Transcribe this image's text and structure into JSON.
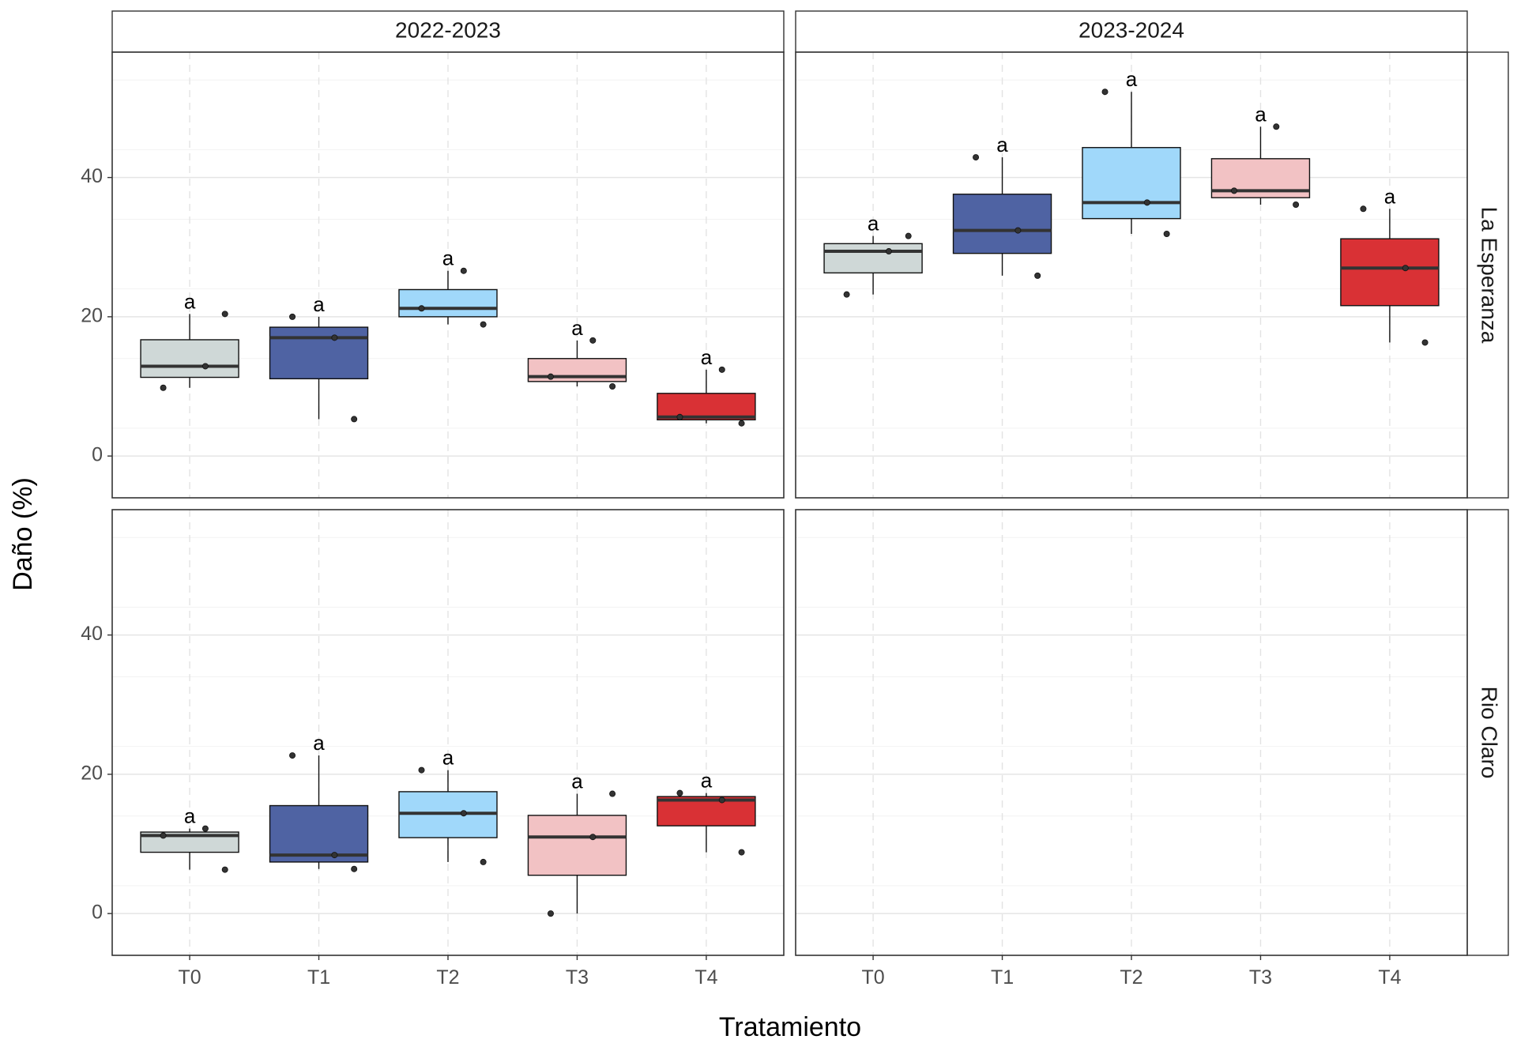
{
  "chart_data": {
    "type": "boxplot",
    "xlabel": "Tratamiento",
    "ylabel": "Daño (%)",
    "categories": [
      "T0",
      "T1",
      "T2",
      "T3",
      "T4"
    ],
    "yticks": [
      0,
      20,
      40
    ],
    "ylim": [
      -6,
      58
    ],
    "grid": true,
    "legend": "none",
    "colors": {
      "T0": "#cfd8d7",
      "T1": "#4f63a3",
      "T2": "#a0d8fa",
      "T3": "#f2c2c4",
      "T4": "#d93135"
    },
    "facets": {
      "columns": [
        "2022-2023",
        "2023-2024"
      ],
      "rows": [
        "La Esperanza",
        "Rio Claro"
      ]
    },
    "panels": [
      {
        "column": "2022-2023",
        "row": "La Esperanza",
        "groups": [
          {
            "category": "T0",
            "q1": 11.3,
            "median": 12.9,
            "q3": 16.7,
            "whisker_low": 9.8,
            "whisker_high": 20.4,
            "points": [
              9.8,
              12.9,
              20.4
            ],
            "label": "a"
          },
          {
            "category": "T1",
            "q1": 11.1,
            "median": 17.0,
            "q3": 18.5,
            "whisker_low": 5.3,
            "whisker_high": 20.0,
            "points": [
              20.0,
              17.0,
              5.3
            ],
            "label": "a"
          },
          {
            "category": "T2",
            "q1": 20.0,
            "median": 21.2,
            "q3": 23.9,
            "whisker_low": 18.9,
            "whisker_high": 26.6,
            "points": [
              21.2,
              26.6,
              18.9
            ],
            "label": "a"
          },
          {
            "category": "T3",
            "q1": 10.7,
            "median": 11.4,
            "q3": 14.0,
            "whisker_low": 10.0,
            "whisker_high": 16.6,
            "points": [
              11.4,
              16.6,
              10.0
            ],
            "label": "a"
          },
          {
            "category": "T4",
            "q1": 5.2,
            "median": 5.6,
            "q3": 9.0,
            "whisker_low": 4.7,
            "whisker_high": 12.4,
            "points": [
              5.6,
              12.4,
              4.7
            ],
            "label": "a"
          }
        ]
      },
      {
        "column": "2023-2024",
        "row": "La Esperanza",
        "groups": [
          {
            "category": "T0",
            "q1": 26.3,
            "median": 29.4,
            "q3": 30.5,
            "whisker_low": 23.2,
            "whisker_high": 31.6,
            "points": [
              23.2,
              29.4,
              31.6
            ],
            "label": "a"
          },
          {
            "category": "T1",
            "q1": 29.1,
            "median": 32.4,
            "q3": 37.6,
            "whisker_low": 25.9,
            "whisker_high": 42.9,
            "points": [
              42.9,
              32.4,
              25.9
            ],
            "label": "a"
          },
          {
            "category": "T2",
            "q1": 34.1,
            "median": 36.4,
            "q3": 44.3,
            "whisker_low": 31.9,
            "whisker_high": 52.3,
            "points": [
              52.3,
              36.4,
              31.9
            ],
            "label": "a"
          },
          {
            "category": "T3",
            "q1": 37.1,
            "median": 38.1,
            "q3": 42.7,
            "whisker_low": 36.1,
            "whisker_high": 47.3,
            "points": [
              38.1,
              47.3,
              36.1
            ],
            "label": "a"
          },
          {
            "category": "T4",
            "q1": 21.6,
            "median": 27.0,
            "q3": 31.2,
            "whisker_low": 16.3,
            "whisker_high": 35.5,
            "points": [
              35.5,
              27.0,
              16.3
            ],
            "label": "a"
          }
        ]
      },
      {
        "column": "2022-2023",
        "row": "Rio Claro",
        "groups": [
          {
            "category": "T0",
            "q1": 8.8,
            "median": 11.2,
            "q3": 11.7,
            "whisker_low": 6.3,
            "whisker_high": 12.2,
            "points": [
              11.2,
              12.2,
              6.3
            ],
            "label": "a"
          },
          {
            "category": "T1",
            "q1": 7.4,
            "median": 8.4,
            "q3": 15.5,
            "whisker_low": 6.4,
            "whisker_high": 22.7,
            "points": [
              22.7,
              8.4,
              6.4
            ],
            "label": "a"
          },
          {
            "category": "T2",
            "q1": 10.9,
            "median": 14.4,
            "q3": 17.5,
            "whisker_low": 7.4,
            "whisker_high": 20.6,
            "points": [
              20.6,
              14.4,
              7.4
            ],
            "label": "a"
          },
          {
            "category": "T3",
            "q1": 5.5,
            "median": 11.0,
            "q3": 14.1,
            "whisker_low": 0.0,
            "whisker_high": 17.2,
            "points": [
              0.0,
              11.0,
              17.2
            ],
            "label": "a"
          },
          {
            "category": "T4",
            "q1": 12.6,
            "median": 16.3,
            "q3": 16.8,
            "whisker_low": 8.8,
            "whisker_high": 17.3,
            "points": [
              17.3,
              16.3,
              8.8
            ],
            "label": "a"
          }
        ]
      },
      {
        "column": "2023-2024",
        "row": "Rio Claro",
        "groups": []
      }
    ]
  }
}
